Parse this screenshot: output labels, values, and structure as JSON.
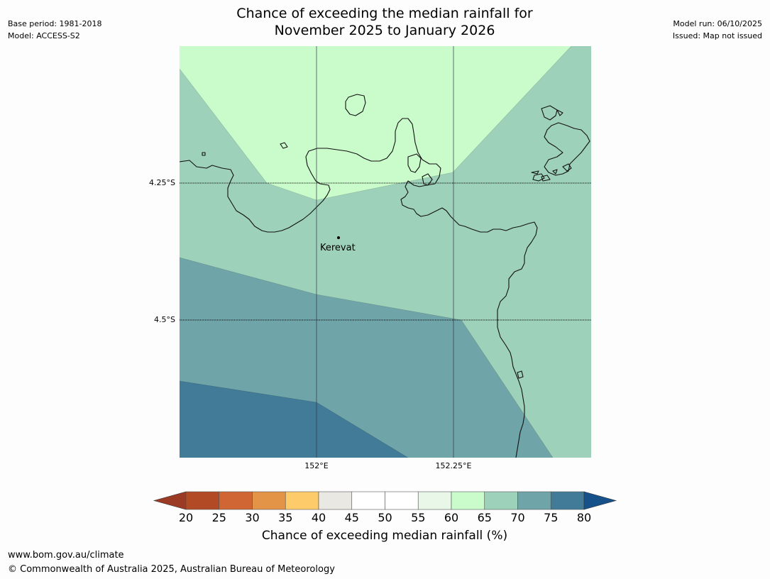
{
  "header": {
    "base_period": "Base period: 1981-2018",
    "model": "Model: ACCESS-S2",
    "model_run": "Model run: 06/10/2025",
    "issued": "Issued: Map not issued",
    "title_line1": "Chance of exceeding the median rainfall for",
    "title_line2": "November 2025 to January 2026"
  },
  "map": {
    "lat_labels": [
      "4.25°S",
      "4.5°S"
    ],
    "lon_labels": [
      "152°E",
      "152.25°E"
    ],
    "place": "Kerevat",
    "zone_colors": {
      "60_65": "#cafccb",
      "65_70": "#9ed1ba",
      "70_75": "#6fa4a8",
      "75_80": "#417b98"
    }
  },
  "colorbar": {
    "ticks": [
      "20",
      "25",
      "30",
      "35",
      "40",
      "45",
      "50",
      "55",
      "60",
      "65",
      "70",
      "75",
      "80"
    ],
    "bins": [
      {
        "range": "<20",
        "color": "#9b3b26"
      },
      {
        "range": "20-25",
        "color": "#b14a25"
      },
      {
        "range": "25-30",
        "color": "#cf6634"
      },
      {
        "range": "30-35",
        "color": "#e39447"
      },
      {
        "range": "35-40",
        "color": "#fecb6a"
      },
      {
        "range": "40-45",
        "color": "#eae8e3"
      },
      {
        "range": "45-50",
        "color": "#ffffff"
      },
      {
        "range": "50-55",
        "color": "#ffffff"
      },
      {
        "range": "55-60",
        "color": "#e8f7e8"
      },
      {
        "range": "60-65",
        "color": "#cafccb"
      },
      {
        "range": "65-70",
        "color": "#9ed1ba"
      },
      {
        "range": "70-75",
        "color": "#6fa4a8"
      },
      {
        "range": "75-80",
        "color": "#417b98"
      },
      {
        "range": ">80",
        "color": "#17518a"
      }
    ],
    "title": "Chance of exceeding median rainfall (%)"
  },
  "footer": {
    "url": "www.bom.gov.au/climate",
    "copyright": "© Commonwealth of Australia 2025, Australian Bureau of Meteorology"
  }
}
